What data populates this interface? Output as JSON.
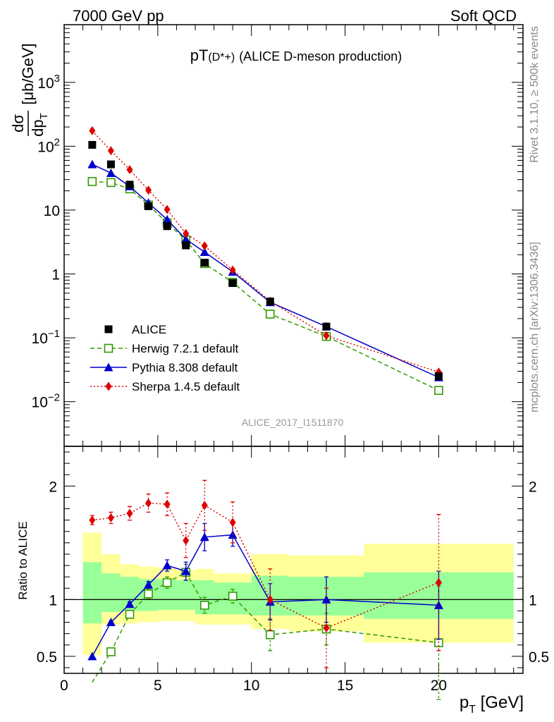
{
  "header": {
    "left": "7000 GeV pp",
    "right": "Soft QCD"
  },
  "title_main": "pT",
  "title_sub": "(D*+)",
  "title_rest": "(ALICE D-meson production)",
  "analysis_tag": "ALICE_2017_I1511870",
  "side_text_top": "Rivet 3.1.10, ≥ 500k events",
  "side_text_bottom": "mcplots.cern.ch [arXiv:1306.3436]",
  "chart_data": [
    {
      "type": "scatter",
      "panel": "main",
      "xlabel": "p_T [GeV]",
      "ylabel": "dσ/dp_T [μb/GeV]",
      "xlim": [
        0,
        24.5
      ],
      "ylim": [
        0.002,
        8000
      ],
      "log_y": true,
      "x_ticks": [
        "0",
        "5",
        "10",
        "15",
        "20"
      ],
      "y_ticks": [
        "10^-2",
        "10^-1",
        "1",
        "10",
        "10^2",
        "10^3"
      ],
      "legend_placement": "lower-left",
      "series": [
        {
          "name": "ALICE",
          "x": [
            1.5,
            2.5,
            3.5,
            4.5,
            5.5,
            6.5,
            7.5,
            9,
            11,
            14,
            20
          ],
          "y": [
            105,
            52,
            25,
            11.5,
            5.6,
            2.8,
            1.5,
            0.72,
            0.37,
            0.15,
            0.025
          ],
          "color": "#000000",
          "marker": "square-filled",
          "line": "none"
        },
        {
          "name": "Herwig 7.2.1 default",
          "x": [
            1.5,
            2.5,
            3.5,
            4.5,
            5.5,
            6.5,
            7.5,
            9,
            11,
            14,
            20
          ],
          "y": [
            28,
            27,
            21.5,
            12,
            6.3,
            3.4,
            1.45,
            0.74,
            0.235,
            0.105,
            0.015
          ],
          "color": "#339900",
          "marker": "square-open",
          "line": "dashed"
        },
        {
          "name": "Pythia 8.308 default",
          "x": [
            1.5,
            2.5,
            3.5,
            4.5,
            5.5,
            6.5,
            7.5,
            9,
            11,
            14,
            20
          ],
          "y": [
            52,
            38,
            23.5,
            13,
            7.1,
            3.5,
            2.2,
            1.08,
            0.36,
            0.15,
            0.024
          ],
          "color": "#0000cc",
          "marker": "triangle-filled",
          "line": "solid"
        },
        {
          "name": "Sherpa 1.4.5 default",
          "x": [
            1.5,
            2.5,
            3.5,
            4.5,
            5.5,
            6.5,
            7.5,
            9,
            11,
            14,
            20
          ],
          "y": [
            175,
            85,
            43,
            20.5,
            10.2,
            4.3,
            2.75,
            1.15,
            0.375,
            0.108,
            0.029
          ],
          "color": "#dd0000",
          "marker": "diamond-filled",
          "line": "dotted"
        }
      ]
    },
    {
      "type": "line",
      "panel": "ratio",
      "xlabel": "p_T [GeV]",
      "ylabel": "Ratio to ALICE",
      "xlim": [
        0,
        24.5
      ],
      "ylim": [
        0.35,
        2.35
      ],
      "x_ticks": [
        "0",
        "5",
        "10",
        "15",
        "20"
      ],
      "y_ticks": [
        "0.5",
        "1",
        "2"
      ],
      "bands": {
        "bin_edges": [
          1,
          2,
          3,
          4,
          5,
          6,
          7,
          8,
          10,
          12,
          16,
          24
        ],
        "yellow_low": [
          0.51,
          0.78,
          0.79,
          0.8,
          0.81,
          0.81,
          0.78,
          0.78,
          0.74,
          0.72,
          0.62
        ],
        "yellow_high": [
          1.59,
          1.4,
          1.31,
          1.29,
          1.28,
          1.26,
          1.27,
          1.23,
          1.4,
          1.39,
          1.49
        ],
        "green_low": [
          0.79,
          0.89,
          0.9,
          0.9,
          0.91,
          0.91,
          0.87,
          0.87,
          0.86,
          0.86,
          0.83
        ],
        "green_high": [
          1.33,
          1.23,
          1.2,
          1.18,
          1.18,
          1.17,
          1.17,
          1.15,
          1.21,
          1.2,
          1.24
        ]
      },
      "series": [
        {
          "name": "Herwig 7.2.1 default",
          "x": [
            1.5,
            2.5,
            3.5,
            4.5,
            5.5,
            6.5,
            7.5,
            9,
            11,
            14,
            20
          ],
          "y": [
            0.27,
            0.54,
            0.87,
            1.05,
            1.15,
            1.24,
            0.95,
            1.03,
            0.69,
            0.74,
            0.62
          ],
          "err": [
            0,
            0.02,
            0.03,
            0.04,
            0.05,
            0.07,
            0.07,
            0.06,
            0.14,
            0.14,
            0.5
          ],
          "color": "#339900"
        },
        {
          "name": "Pythia 8.308 default",
          "x": [
            1.5,
            2.5,
            3.5,
            4.5,
            5.5,
            6.5,
            7.5,
            9,
            11,
            14,
            20
          ],
          "y": [
            0.5,
            0.8,
            0.96,
            1.13,
            1.3,
            1.25,
            1.55,
            1.57,
            0.98,
            1.0,
            0.95
          ],
          "err": [
            0,
            0.01,
            0.02,
            0.03,
            0.05,
            0.08,
            0.12,
            0.1,
            0.16,
            0.2,
            0.3
          ],
          "color": "#0000cc"
        },
        {
          "name": "Sherpa 1.4.5 default",
          "x": [
            1.5,
            2.5,
            3.5,
            4.5,
            5.5,
            6.5,
            7.5,
            9,
            11,
            14,
            20
          ],
          "y": [
            1.7,
            1.72,
            1.76,
            1.85,
            1.84,
            1.52,
            1.83,
            1.68,
            1.0,
            0.75,
            1.15
          ],
          "err": [
            0.04,
            0.05,
            0.06,
            0.08,
            0.1,
            0.15,
            0.22,
            0.18,
            0.27,
            0.35,
            0.6
          ],
          "color": "#dd0000"
        }
      ]
    }
  ]
}
